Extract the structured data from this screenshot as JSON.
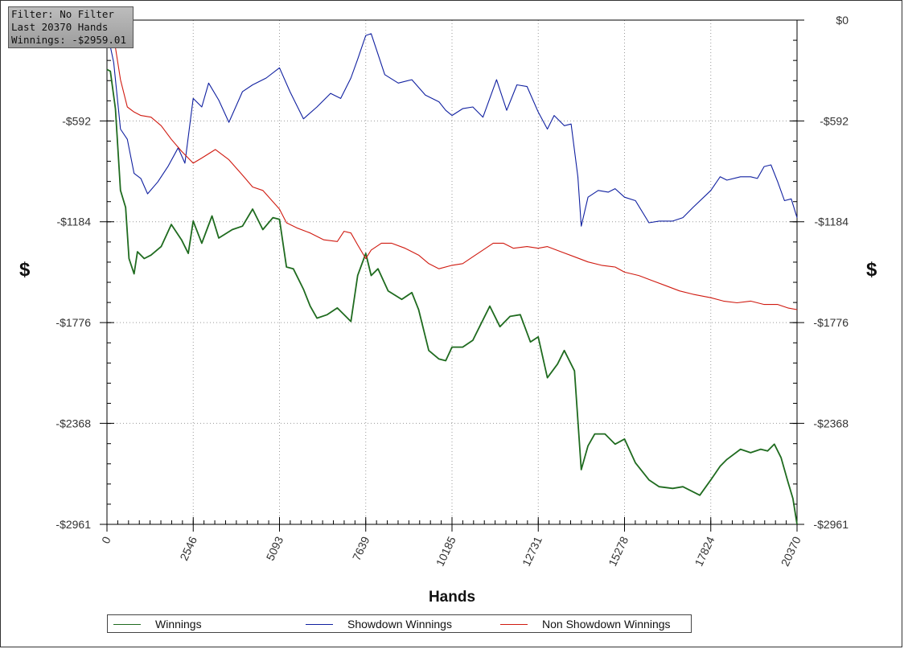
{
  "info": {
    "filter": "Filter: No Filter",
    "hands": "Last 20370 Hands",
    "winnings": "Winnings: -$2959.01"
  },
  "colors": {
    "winnings": "#1f6b1f",
    "showdown": "#1020a0",
    "non_showdown": "#d01a10",
    "grid": "#999999"
  },
  "chart_data": {
    "type": "line",
    "title": "",
    "xlabel": "Hands",
    "ylabel": "$",
    "xlim": [
      0,
      20370
    ],
    "ylim": [
      -2961,
      0
    ],
    "x_ticks": [
      "0",
      "2546",
      "5093",
      "7639",
      "10185",
      "12731",
      "15278",
      "17824",
      "20370"
    ],
    "y_ticks": [
      {
        "value": 0,
        "label": "$0"
      },
      {
        "value": -592,
        "label": "-$592"
      },
      {
        "value": -1184,
        "label": "-$1184"
      },
      {
        "value": -1776,
        "label": "-$1776"
      },
      {
        "value": -2368,
        "label": "-$2368"
      },
      {
        "value": -2961,
        "label": "-$2961"
      }
    ],
    "grid": true,
    "legend_position": "bottom",
    "series": [
      {
        "name": "Winnings",
        "color_key": "winnings",
        "x": [
          0,
          100,
          250,
          400,
          550,
          650,
          800,
          900,
          1100,
          1300,
          1600,
          1900,
          2200,
          2400,
          2546,
          2800,
          3100,
          3300,
          3700,
          4000,
          4300,
          4600,
          4900,
          5093,
          5300,
          5500,
          5800,
          6000,
          6200,
          6500,
          6800,
          7200,
          7400,
          7639,
          7800,
          8000,
          8300,
          8700,
          9000,
          9200,
          9500,
          9800,
          10000,
          10185,
          10500,
          10800,
          11000,
          11300,
          11600,
          11900,
          12200,
          12500,
          12731,
          13000,
          13300,
          13500,
          13800,
          14000,
          14200,
          14400,
          14700,
          15000,
          15278,
          15600,
          16000,
          16300,
          16700,
          17000,
          17500,
          17824,
          18100,
          18300,
          18700,
          19000,
          19300,
          19500,
          19700,
          19900,
          20100,
          20250,
          20370
        ],
        "values": [
          -290,
          -300,
          -520,
          -1000,
          -1100,
          -1400,
          -1490,
          -1360,
          -1400,
          -1380,
          -1330,
          -1200,
          -1290,
          -1370,
          -1180,
          -1310,
          -1150,
          -1280,
          -1230,
          -1210,
          -1110,
          -1230,
          -1160,
          -1170,
          -1450,
          -1460,
          -1580,
          -1680,
          -1750,
          -1730,
          -1690,
          -1770,
          -1500,
          -1370,
          -1500,
          -1460,
          -1590,
          -1640,
          -1600,
          -1700,
          -1940,
          -1990,
          -2000,
          -1920,
          -1920,
          -1880,
          -1800,
          -1680,
          -1800,
          -1740,
          -1730,
          -1890,
          -1860,
          -2100,
          -2020,
          -1940,
          -2060,
          -2640,
          -2500,
          -2430,
          -2430,
          -2490,
          -2460,
          -2600,
          -2700,
          -2740,
          -2750,
          -2740,
          -2790,
          -2700,
          -2620,
          -2580,
          -2520,
          -2540,
          -2520,
          -2530,
          -2490,
          -2570,
          -2710,
          -2810,
          -2961
        ]
      },
      {
        "name": "Showdown Winnings",
        "color_key": "showdown",
        "x": [
          0,
          200,
          400,
          600,
          800,
          1000,
          1200,
          1500,
          1800,
          2100,
          2300,
          2546,
          2800,
          3000,
          3300,
          3600,
          4000,
          4300,
          4700,
          5093,
          5400,
          5800,
          6200,
          6600,
          6900,
          7200,
          7400,
          7639,
          7800,
          8000,
          8200,
          8600,
          9000,
          9400,
          9800,
          10000,
          10185,
          10500,
          10800,
          11100,
          11500,
          11800,
          12100,
          12400,
          12731,
          13000,
          13200,
          13500,
          13700,
          13900,
          14000,
          14200,
          14500,
          14800,
          15000,
          15278,
          15600,
          16000,
          16300,
          16700,
          17000,
          17300,
          17824,
          18100,
          18300,
          18700,
          19000,
          19200,
          19400,
          19600,
          19800,
          20000,
          20200,
          20370
        ],
        "values": [
          -60,
          -250,
          -640,
          -700,
          -900,
          -930,
          -1020,
          -950,
          -860,
          -750,
          -840,
          -460,
          -510,
          -370,
          -470,
          -600,
          -420,
          -380,
          -340,
          -280,
          -420,
          -580,
          -510,
          -430,
          -460,
          -340,
          -230,
          -90,
          -80,
          -200,
          -320,
          -370,
          -350,
          -440,
          -480,
          -530,
          -560,
          -520,
          -510,
          -570,
          -350,
          -530,
          -380,
          -390,
          -540,
          -640,
          -560,
          -620,
          -610,
          -920,
          -1210,
          -1040,
          -1000,
          -1010,
          -990,
          -1040,
          -1060,
          -1190,
          -1180,
          -1180,
          -1160,
          -1100,
          -1000,
          -920,
          -940,
          -920,
          -920,
          -930,
          -860,
          -850,
          -950,
          -1060,
          -1050,
          -1160
        ]
      },
      {
        "name": "Non Showdown Winnings",
        "color_key": "non_showdown",
        "x": [
          0,
          100,
          250,
          400,
          600,
          800,
          1000,
          1300,
          1600,
          1900,
          2200,
          2546,
          2800,
          3200,
          3600,
          4000,
          4300,
          4600,
          5093,
          5300,
          5600,
          6000,
          6400,
          6800,
          7000,
          7200,
          7400,
          7639,
          7800,
          8100,
          8400,
          8800,
          9200,
          9500,
          9800,
          10185,
          10500,
          10800,
          11100,
          11400,
          11700,
          12000,
          12400,
          12731,
          13000,
          13400,
          13800,
          14200,
          14600,
          15000,
          15278,
          15700,
          16100,
          16500,
          16900,
          17300,
          17824,
          18200,
          18600,
          19000,
          19400,
          19800,
          20100,
          20370
        ],
        "values": [
          -80,
          -90,
          -160,
          -350,
          -510,
          -540,
          -560,
          -570,
          -620,
          -700,
          -770,
          -840,
          -810,
          -760,
          -820,
          -910,
          -980,
          -1000,
          -1110,
          -1190,
          -1220,
          -1250,
          -1290,
          -1300,
          -1240,
          -1250,
          -1320,
          -1400,
          -1350,
          -1310,
          -1310,
          -1340,
          -1380,
          -1430,
          -1460,
          -1440,
          -1430,
          -1390,
          -1350,
          -1310,
          -1310,
          -1340,
          -1330,
          -1340,
          -1330,
          -1360,
          -1390,
          -1420,
          -1440,
          -1450,
          -1480,
          -1500,
          -1530,
          -1560,
          -1590,
          -1610,
          -1630,
          -1650,
          -1660,
          -1650,
          -1670,
          -1670,
          -1690,
          -1700
        ]
      }
    ]
  }
}
